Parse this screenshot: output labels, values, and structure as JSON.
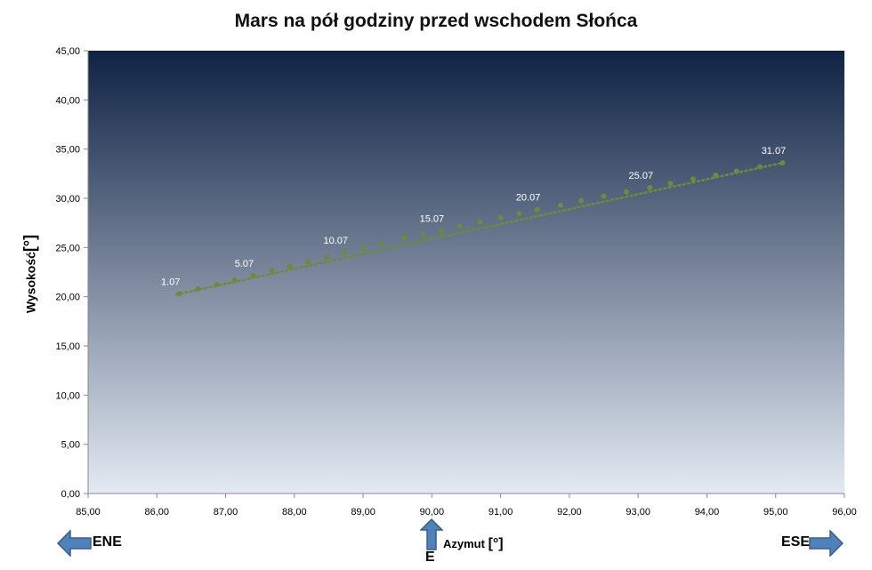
{
  "chart_data": {
    "type": "scatter",
    "title": "Mars na pół godziny przed wschodem Słońca",
    "xlabel": "Azymut",
    "xlabel_unit": "[°]",
    "ylabel": "Wysokość",
    "ylabel_unit": "[°]",
    "xlim": [
      85,
      96
    ],
    "ylim": [
      0,
      45
    ],
    "x_ticks": [
      "85,00",
      "86,00",
      "87,00",
      "88,00",
      "89,00",
      "90,00",
      "91,00",
      "92,00",
      "93,00",
      "94,00",
      "95,00",
      "96,00"
    ],
    "y_ticks": [
      "0,00",
      "5,00",
      "10,00",
      "15,00",
      "20,00",
      "25,00",
      "30,00",
      "35,00",
      "40,00",
      "45,00"
    ],
    "background": {
      "top": "#0f2244",
      "bottom": "#e3eaf3"
    },
    "series_color": "#6f8a3a",
    "points": [
      {
        "x": 86.33,
        "y": 20.3
      },
      {
        "x": 86.6,
        "y": 20.8
      },
      {
        "x": 86.87,
        "y": 21.25
      },
      {
        "x": 87.13,
        "y": 21.7
      },
      {
        "x": 87.4,
        "y": 22.15
      },
      {
        "x": 87.67,
        "y": 22.65
      },
      {
        "x": 87.93,
        "y": 23.1
      },
      {
        "x": 88.2,
        "y": 23.55
      },
      {
        "x": 88.47,
        "y": 24.05
      },
      {
        "x": 88.73,
        "y": 24.5
      },
      {
        "x": 89.0,
        "y": 24.95
      },
      {
        "x": 89.27,
        "y": 25.4
      },
      {
        "x": 89.6,
        "y": 26.0
      },
      {
        "x": 89.87,
        "y": 26.3
      },
      {
        "x": 90.13,
        "y": 26.7
      },
      {
        "x": 90.4,
        "y": 27.15
      },
      {
        "x": 90.7,
        "y": 27.6
      },
      {
        "x": 91.0,
        "y": 28.05
      },
      {
        "x": 91.27,
        "y": 28.45
      },
      {
        "x": 91.53,
        "y": 28.85
      },
      {
        "x": 91.87,
        "y": 29.3
      },
      {
        "x": 92.17,
        "y": 29.75
      },
      {
        "x": 92.5,
        "y": 30.2
      },
      {
        "x": 92.83,
        "y": 30.65
      },
      {
        "x": 93.17,
        "y": 31.1
      },
      {
        "x": 93.47,
        "y": 31.5
      },
      {
        "x": 93.8,
        "y": 31.95
      },
      {
        "x": 94.13,
        "y": 32.35
      },
      {
        "x": 94.43,
        "y": 32.75
      },
      {
        "x": 94.77,
        "y": 33.2
      },
      {
        "x": 95.1,
        "y": 33.6
      }
    ],
    "point_labels": [
      {
        "index": 0,
        "text": "1.07"
      },
      {
        "index": 4,
        "text": "5.07"
      },
      {
        "index": 9,
        "text": "10.07"
      },
      {
        "index": 14,
        "text": "15.07"
      },
      {
        "index": 19,
        "text": "20.07"
      },
      {
        "index": 24,
        "text": "25.07"
      },
      {
        "index": 30,
        "text": "31.07"
      }
    ]
  },
  "directions": {
    "left": "ENE",
    "center": "E",
    "right": "ESE"
  },
  "colors": {
    "arrow_fill": "#4f81bd",
    "arrow_stroke": "#385d8a"
  }
}
